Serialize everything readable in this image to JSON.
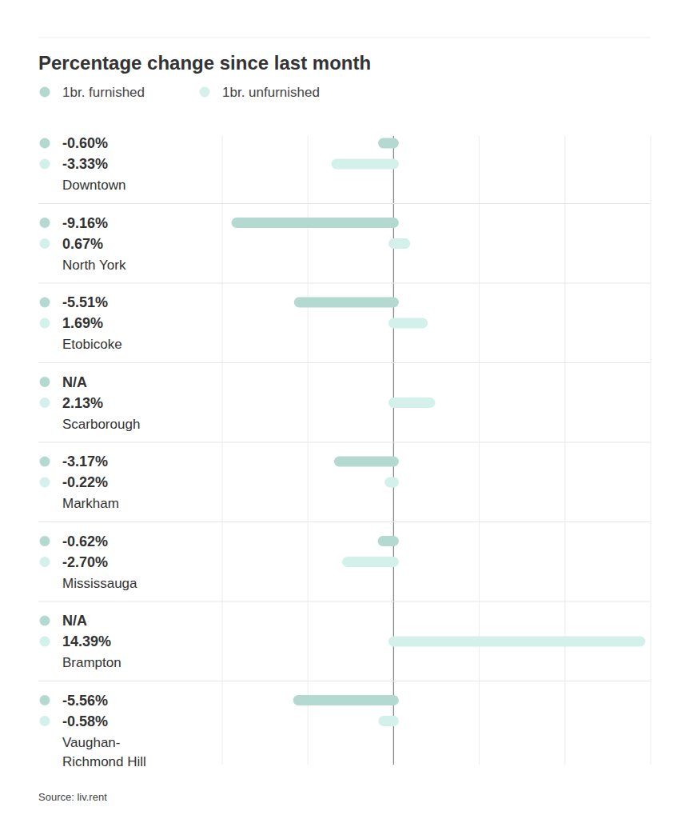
{
  "chart_data": {
    "type": "bar",
    "orientation": "horizontal",
    "title": "Percentage change since last month",
    "source": "Source: liv.rent",
    "categories": [
      "Downtown",
      "North York",
      "Etobicoke",
      "Scarborough",
      "Markham",
      "Mississauga",
      "Brampton",
      "Vaughan-Richmond Hill"
    ],
    "series": [
      {
        "name": "1br. furnished",
        "color": "#b3d9d1",
        "values": [
          -0.6,
          -9.16,
          -5.51,
          null,
          -3.17,
          -0.62,
          null,
          -5.56
        ],
        "value_labels": [
          "-0.60%",
          "-9.16%",
          "-5.51%",
          "N/A",
          "-3.17%",
          "-0.62%",
          "N/A",
          "-5.56%"
        ]
      },
      {
        "name": "1br. unfurnished",
        "color": "#d3f0eb",
        "values": [
          -3.33,
          0.67,
          1.69,
          2.13,
          -0.22,
          -2.7,
          14.39,
          -0.58
        ],
        "value_labels": [
          "-3.33%",
          "0.67%",
          "1.69%",
          "2.13%",
          "-0.22%",
          "-2.70%",
          "14.39%",
          "-0.58%"
        ]
      }
    ],
    "xlim": [
      -10,
      15
    ],
    "xticks": [
      -10,
      -5,
      0,
      5,
      10,
      15
    ],
    "grid": true,
    "data_labels": true,
    "tick_labels": false,
    "legend": "top"
  }
}
